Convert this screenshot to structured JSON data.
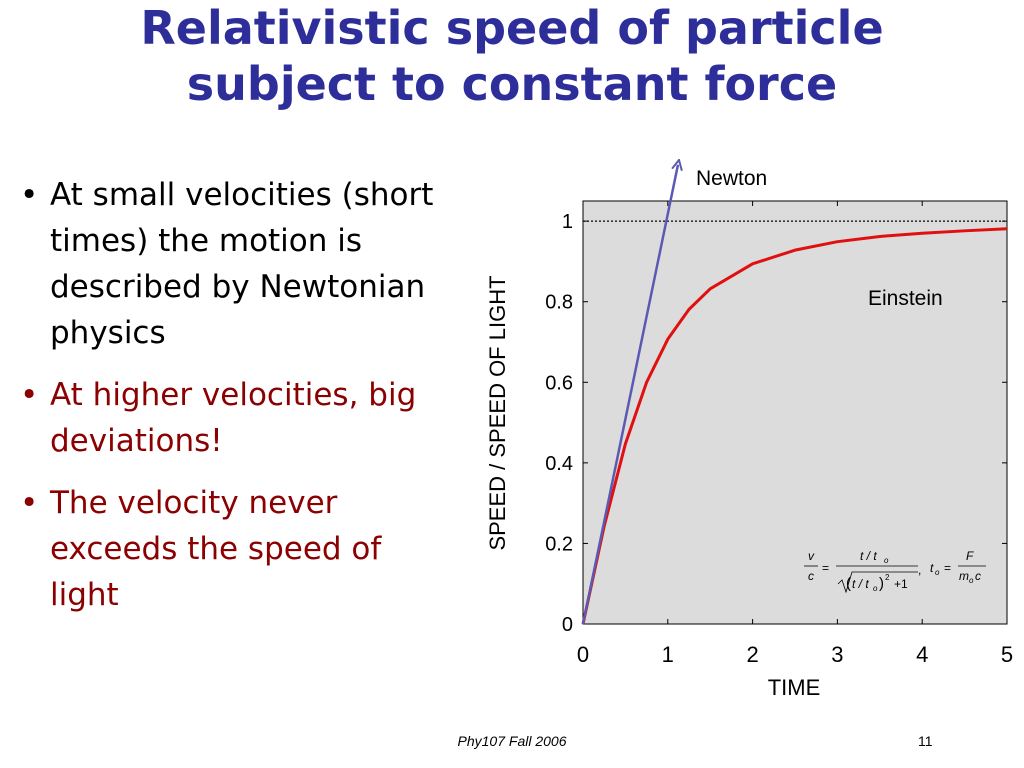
{
  "slide": {
    "title_line1": "Relativistic speed of particle",
    "title_line2": "subject to constant force",
    "footer": "Phy107 Fall 2006",
    "page_number": "11"
  },
  "bullets": [
    {
      "text": "At small velocities (short times) the motion is described by Newtonian physics",
      "color": "#000000"
    },
    {
      "text": "At higher velocities, big deviations!",
      "color": "#8b0000"
    },
    {
      "text": "The velocity never exceeds the speed of light",
      "color": "#8b0000"
    }
  ],
  "chart_data": {
    "type": "line",
    "xlabel": "TIME",
    "ylabel": "SPEED / SPEED OF LIGHT",
    "xlim": [
      0,
      5
    ],
    "ylim": [
      0,
      1.05
    ],
    "x_ticks": [
      "0",
      "1",
      "2",
      "3",
      "4",
      "5"
    ],
    "y_ticks": [
      "0",
      "0.2",
      "0.4",
      "0.6",
      "0.8",
      "1"
    ],
    "background": "#dcdcdc",
    "reference_line": {
      "y": 1,
      "style": "dotted"
    },
    "series": [
      {
        "name": "Newton",
        "color": "#5a5ab4",
        "x": [
          0,
          1.12
        ],
        "y": [
          0,
          1.12
        ]
      },
      {
        "name": "Einstein",
        "color": "#e01010",
        "x": [
          0,
          0.25,
          0.5,
          0.75,
          1.0,
          1.25,
          1.5,
          2.0,
          2.5,
          3.0,
          3.5,
          4.0,
          4.5,
          5.0
        ],
        "y": [
          0,
          0.243,
          0.447,
          0.6,
          0.707,
          0.781,
          0.832,
          0.894,
          0.928,
          0.949,
          0.962,
          0.97,
          0.976,
          0.981
        ]
      }
    ],
    "formula": {
      "v": "v",
      "c": "c",
      "eq": "=",
      "num": "t / t",
      "sub_o": "o",
      "den_a": "t / t",
      "sq": "2",
      "plus_one": "+1",
      "comma": ",",
      "t0": "t",
      "F": "F",
      "m": "m",
      "c2": "c"
    }
  }
}
